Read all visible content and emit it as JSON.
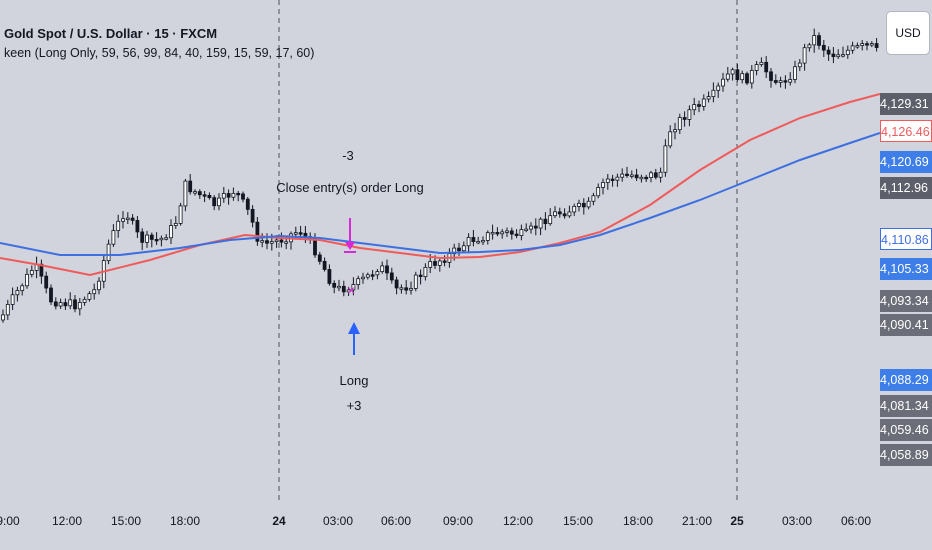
{
  "header": {
    "symbol": "Gold Spot / U.S. Dollar · 15 · FXCM",
    "indicator": "keen (Long Only, 59, 56, 99, 84, 40, 159, 15, 59, 17, 60)"
  },
  "currency_button": "USD",
  "colors": {
    "background": "#d1d4dc",
    "red_ma": "#f05a5a",
    "blue_ma": "#3d6fe0",
    "candle": "#131722",
    "marker_pink": "#d62ad6",
    "marker_blue": "#2962ff"
  },
  "price_labels": [
    {
      "text": "4,129.31",
      "style": "dark"
    },
    {
      "text": "4,126.46",
      "style": "red-outline"
    },
    {
      "text": "4,120.69",
      "style": "blue"
    },
    {
      "text": "4,112.96",
      "style": "dark"
    },
    {
      "text": "4,110.86",
      "style": "blue-outline"
    },
    {
      "text": "4,105.33",
      "style": "blue"
    },
    {
      "text": "4,093.34",
      "style": "gray"
    },
    {
      "text": "4,090.41",
      "style": "gray"
    },
    {
      "text": "4,088.29",
      "style": "blue"
    },
    {
      "text": "4,081.34",
      "style": "gray"
    },
    {
      "text": "4,059.46",
      "style": "gray"
    },
    {
      "text": "4,058.89",
      "style": "gray"
    }
  ],
  "time_labels": [
    {
      "text": "9:00",
      "bold": false
    },
    {
      "text": "12:00",
      "bold": false
    },
    {
      "text": "15:00",
      "bold": false
    },
    {
      "text": "18:00",
      "bold": false
    },
    {
      "text": "24",
      "bold": true
    },
    {
      "text": "03:00",
      "bold": false
    },
    {
      "text": "06:00",
      "bold": false
    },
    {
      "text": "09:00",
      "bold": false
    },
    {
      "text": "12:00",
      "bold": false
    },
    {
      "text": "15:00",
      "bold": false
    },
    {
      "text": "18:00",
      "bold": false
    },
    {
      "text": "21:00",
      "bold": false
    },
    {
      "text": "25",
      "bold": true
    },
    {
      "text": "03:00",
      "bold": false
    },
    {
      "text": "06:00",
      "bold": false
    }
  ],
  "annotations": {
    "exit_qty": "-3",
    "exit_text": "Close entry(s) order Long",
    "entry_text": "Long",
    "entry_qty": "+3"
  }
}
